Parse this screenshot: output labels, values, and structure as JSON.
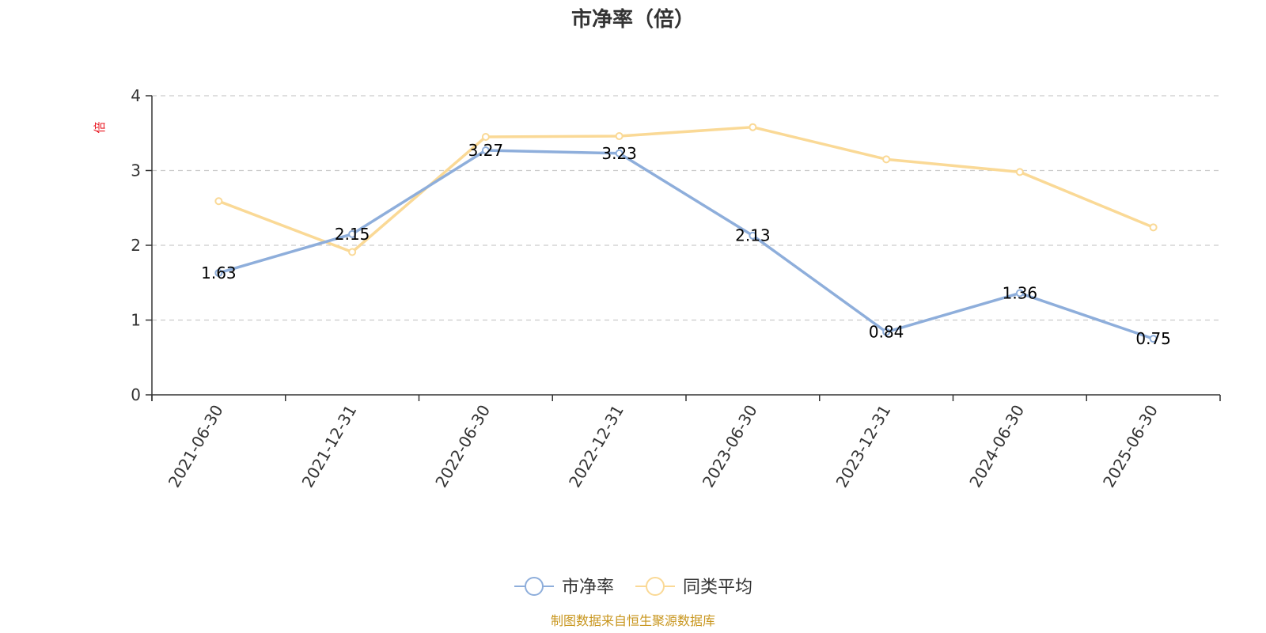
{
  "chart_data": {
    "type": "line",
    "title": "市净率（倍）",
    "ylabel": "倍",
    "categories": [
      "2021-06-30",
      "2021-12-31",
      "2022-06-30",
      "2022-12-31",
      "2023-06-30",
      "2023-12-31",
      "2024-06-30",
      "2025-06-30"
    ],
    "ylim": [
      0,
      4
    ],
    "yticks": [
      "0",
      "1",
      "2",
      "3",
      "4"
    ],
    "grid": true,
    "legend_position": "bottom",
    "series": [
      {
        "name": "市净率",
        "color": "#8eaedb",
        "values": [
          1.63,
          2.15,
          3.27,
          3.23,
          2.13,
          0.84,
          1.36,
          0.75
        ],
        "labels": [
          "1.63",
          "2.15",
          "3.27",
          "3.23",
          "2.13",
          "0.84",
          "1.36",
          "0.75"
        ]
      },
      {
        "name": "同类平均",
        "color": "#fad996",
        "values": [
          2.59,
          1.91,
          3.45,
          3.46,
          3.58,
          3.15,
          2.98,
          2.24
        ]
      }
    ],
    "source": "制图数据来自恒生聚源数据库"
  }
}
